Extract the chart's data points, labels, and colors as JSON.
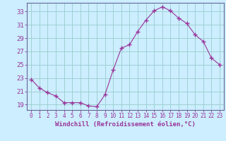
{
  "x": [
    0,
    1,
    2,
    3,
    4,
    5,
    6,
    7,
    8,
    9,
    10,
    11,
    12,
    13,
    14,
    15,
    16,
    17,
    18,
    19,
    20,
    21,
    22,
    23
  ],
  "y": [
    22.8,
    21.5,
    20.8,
    20.3,
    19.3,
    19.3,
    19.3,
    18.8,
    18.7,
    20.5,
    24.2,
    27.5,
    28.0,
    30.0,
    31.7,
    33.1,
    33.7,
    33.1,
    32.0,
    31.2,
    29.5,
    28.5,
    26.0,
    25.0
  ],
  "line_color": "#993399",
  "marker": "+",
  "marker_size": 4,
  "bg_color": "#cceeff",
  "grid_color": "#99cccc",
  "ylabel_ticks": [
    19,
    21,
    23,
    25,
    27,
    29,
    31,
    33
  ],
  "xlabel": "Windchill (Refroidissement éolien,°C)",
  "ylim": [
    18.2,
    34.3
  ],
  "xlim": [
    -0.5,
    23.5
  ],
  "line_color2": "#993399",
  "tick_color": "#993399",
  "xlabel_fontsize": 6.5,
  "ytick_fontsize": 6.5,
  "xtick_fontsize": 5.5,
  "spine_color": "#666699"
}
